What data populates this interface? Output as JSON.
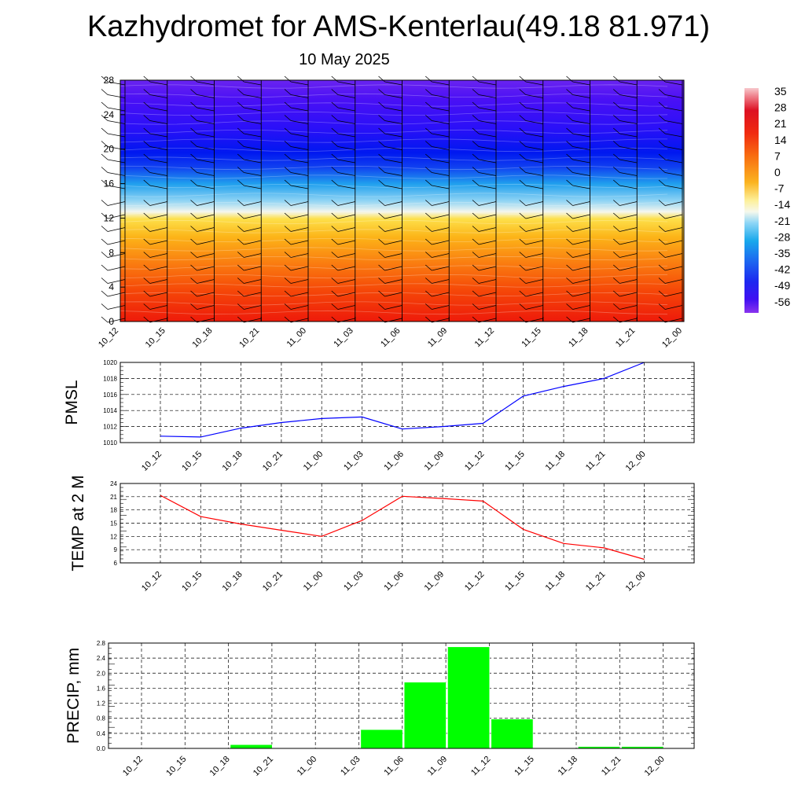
{
  "page": {
    "title": "Kazhydromet for AMS-Kenterlau(49.18 81.971)",
    "subtitle": "10 May 2025"
  },
  "colors": {
    "pmsl_line": "#0000ff",
    "temp_line": "#ff0000",
    "precip_bar": "#00ff00",
    "barb": "#000000",
    "grid": "#000000"
  },
  "chart_data": [
    {
      "type": "heatmap",
      "name": "cross-section",
      "x": [
        "10_12",
        "10_15",
        "10_18",
        "10_21",
        "11_00",
        "11_03",
        "11_06",
        "11_09",
        "11_12",
        "11_15",
        "11_18",
        "11_21",
        "12_00"
      ],
      "ylim": [
        0,
        28
      ],
      "yticks": [
        "0",
        "4",
        "8",
        "12",
        "16",
        "20",
        "24",
        "28"
      ],
      "colorbar": {
        "labels": [
          "35",
          "28",
          "21",
          "14",
          "7",
          "0",
          "-7",
          "-14",
          "-21",
          "-28",
          "-35",
          "-42",
          "-49",
          "-56"
        ],
        "range": [
          -63,
          42
        ]
      }
    },
    {
      "type": "line",
      "ylabel": "PMSL",
      "x": [
        "10_12",
        "10_15",
        "10_18",
        "10_21",
        "11_00",
        "11_03",
        "11_06",
        "11_09",
        "11_12",
        "11_15",
        "11_18",
        "11_21",
        "12_00"
      ],
      "ylim": [
        1010,
        1020
      ],
      "yticks": [
        "1010",
        "1012",
        "1014",
        "1016",
        "1018",
        "1020"
      ],
      "series": [
        {
          "values": [
            1010.8,
            1010.7,
            1011.8,
            1012.5,
            1013.0,
            1013.2,
            1011.7,
            1012.0,
            1012.4,
            1015.8,
            1017.0,
            1018.0,
            1020.0
          ]
        }
      ],
      "grid": true
    },
    {
      "type": "line",
      "ylabel": "TEMP at 2 M",
      "x": [
        "10_12",
        "10_15",
        "10_18",
        "10_21",
        "11_00",
        "11_03",
        "11_06",
        "11_09",
        "11_12",
        "11_15",
        "11_18",
        "11_21",
        "12_00"
      ],
      "ylim": [
        6,
        24
      ],
      "yticks": [
        "6",
        "9",
        "12",
        "15",
        "18",
        "21",
        "24"
      ],
      "series": [
        {
          "values": [
            21.3,
            16.5,
            14.8,
            13.4,
            12.0,
            15.6,
            21.1,
            20.6,
            20.0,
            13.6,
            10.4,
            9.4,
            6.8
          ]
        }
      ],
      "grid": true
    },
    {
      "type": "bar",
      "ylabel": "PRECIP, mm",
      "x": [
        "10_12",
        "10_15",
        "10_18",
        "10_21",
        "11_00",
        "11_03",
        "11_06",
        "11_09",
        "11_12",
        "11_15",
        "11_18",
        "11_21",
        "12_00"
      ],
      "ylim": [
        0,
        2.8
      ],
      "yticks": [
        "0.0",
        "0.4",
        "0.8",
        "1.2",
        "1.6",
        "2.0",
        "2.4",
        "2.8"
      ],
      "values": [
        0,
        0,
        0.1,
        0,
        0,
        0.5,
        1.76,
        2.7,
        0.78,
        0,
        0.05,
        0.05,
        0
      ],
      "grid": true
    }
  ]
}
